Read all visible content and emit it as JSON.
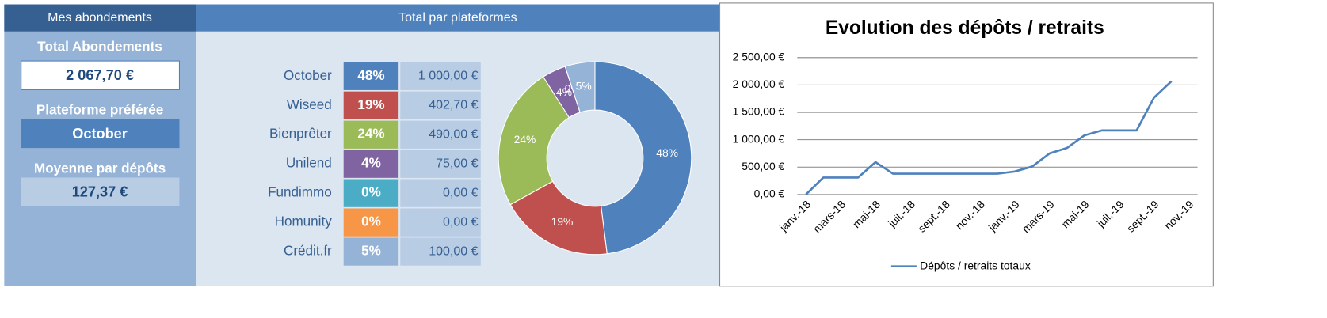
{
  "sidebar": {
    "title": "Mes abondements",
    "items": [
      {
        "label": "Total Abondements",
        "value": "2 067,70 €"
      },
      {
        "label": "Plateforme préférée",
        "value": "October"
      },
      {
        "label": "Moyenne par dépôts",
        "value": "127,37 €"
      }
    ]
  },
  "table": {
    "title": "Total par plateformes",
    "rows": [
      [
        "October",
        "48%",
        "1 000,00 €"
      ],
      [
        "Wiseed",
        "19%",
        "402,70 €"
      ],
      [
        "Bienprêter",
        "24%",
        "490,00 €"
      ],
      [
        "Unilend",
        "4%",
        "75,00 €"
      ],
      [
        "Fundimmo",
        "0%",
        "0,00 €"
      ],
      [
        "Homunity",
        "0%",
        "0,00 €"
      ],
      [
        "Crédit.fr",
        "5%",
        "100,00 €"
      ]
    ]
  },
  "chart_data": [
    {
      "type": "pie",
      "donut": true,
      "values": [
        48,
        19,
        24,
        4,
        0,
        0,
        5
      ],
      "value_labels": [
        "48%",
        "19%",
        "24%",
        "4%",
        "0%",
        "0%",
        "5%"
      ],
      "colors": [
        "#4f81bd",
        "#c0504d",
        "#9bbb59",
        "#8064a2",
        "#4bacc6",
        "#f79646",
        "#95b3d7"
      ]
    },
    {
      "type": "line",
      "title": "Evolution des dépôts / retraits",
      "categories": [
        "janv.-18",
        null,
        "mars-18",
        null,
        "mai-18",
        null,
        "juil.-18",
        null,
        "sept.-18",
        null,
        "nov.-18",
        null,
        "janv.-19",
        null,
        "mars-19",
        null,
        "mai-19",
        null,
        "juil.-19",
        null,
        "sept.-19",
        null,
        "nov.-19"
      ],
      "series": [
        {
          "name": "Dépôts / retraits totaux",
          "color": "#4f81bd",
          "values": [
            0,
            310,
            310,
            310,
            590,
            380,
            380,
            380,
            380,
            380,
            380,
            380,
            420,
            510,
            750,
            850,
            1080,
            1170,
            1170,
            1170,
            1770,
            2067.7,
            null
          ]
        }
      ],
      "ylim": [
        0,
        2500
      ],
      "yticks": [
        {
          "value": 0,
          "label": "0,00 €"
        },
        {
          "value": 500,
          "label": "500,00 €"
        },
        {
          "value": 1000,
          "label": "1 000,00 €"
        },
        {
          "value": 1500,
          "label": "1 500,00 €"
        },
        {
          "value": 2000,
          "label": "2 000,00 €"
        },
        {
          "value": 2500,
          "label": "2 500,00 €"
        }
      ],
      "grid": true,
      "legend": "bottom"
    }
  ]
}
